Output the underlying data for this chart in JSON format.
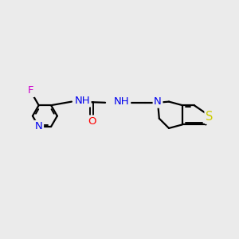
{
  "bg_color": "#ebebeb",
  "bond_color": "#000000",
  "bond_width": 1.6,
  "atom_colors": {
    "N": "#0000ee",
    "O": "#ff0000",
    "S": "#cccc00",
    "F": "#cc00cc",
    "C": "#000000"
  },
  "font_size": 9.5,
  "fig_size": [
    3.0,
    3.0
  ],
  "dpi": 100
}
